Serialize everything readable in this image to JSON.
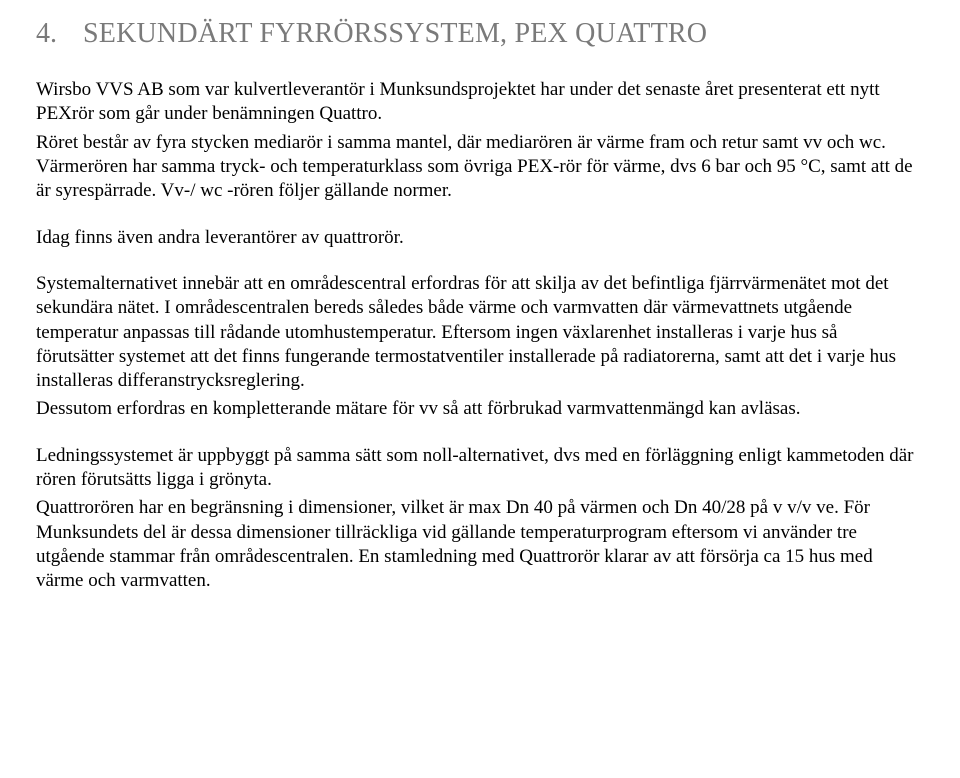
{
  "document": {
    "colors": {
      "heading": "#7a7a7a",
      "body": "#000000",
      "background": "#ffffff"
    },
    "font": {
      "family": "Times New Roman",
      "heading_size_pt": 21,
      "body_size_pt": 14
    },
    "section_number": "4.",
    "section_title": "SEKUNDÄRT FYRRÖRSSYSTEM, PEX QUATTRO",
    "paragraphs": {
      "p1": "Wirsbo VVS AB som var kulvertleverantör i Munksundsprojektet har under det senaste året presenterat ett nytt PEXrör som går under benämningen Quattro.",
      "p2": "Röret består av fyra stycken mediarör i samma mantel, där mediarören är värme fram och retur samt vv och wc. Värmerören har samma tryck- och temperaturklass som övriga PEX-rör för värme, dvs 6 bar och 95 °C, samt att de är syrespärrade. Vv-/ wc -rören följer gällande normer.",
      "p3": "Idag finns även andra leverantörer av quattrorör.",
      "p4": "Systemalternativet innebär att en områdescentral erfordras för att skilja av det befintliga fjärrvärmenätet mot det sekundära nätet. I områdescentralen bereds således både värme och varmvatten där värmevattnets utgående temperatur anpassas till rådande utomhustemperatur. Eftersom ingen växlarenhet installeras i varje hus så förutsätter systemet att det finns fungerande termostatventiler installerade på radiatorerna, samt att det i varje hus installeras differanstrycksreglering.",
      "p5": "Dessutom erfordras en kompletterande mätare för vv så att förbrukad varmvattenmängd kan avläsas.",
      "p6": "Ledningssystemet är uppbyggt på samma sätt som noll-alternativet, dvs med en förläggning enligt kammetoden där rören förutsätts ligga i grönyta.",
      "p7": "Quattrorören har en begränsning i dimensioner, vilket är max Dn 40 på värmen och Dn 40/28 på v v/v ve. För Munksundets del är dessa dimensioner tillräckliga vid gällande temperaturprogram eftersom vi använder tre utgående stammar från områdescentralen. En stamledning med Quattrorör klarar av att försörja ca 15 hus med värme och varmvatten."
    }
  }
}
